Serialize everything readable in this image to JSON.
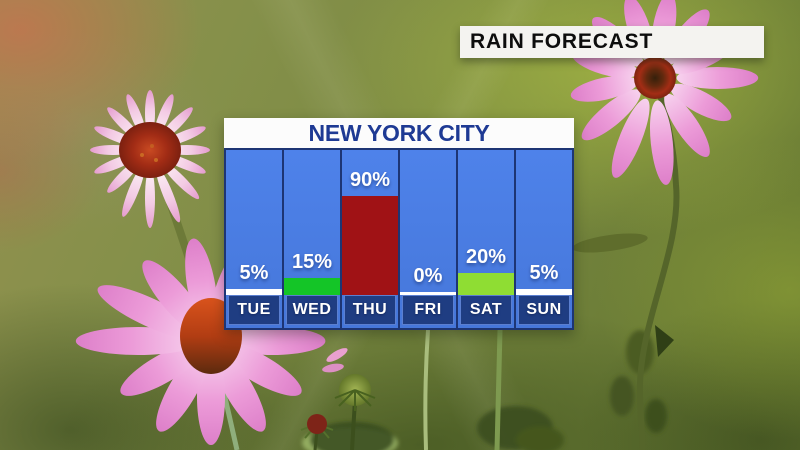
{
  "header": {
    "badge_label": "RAIN FORECAST"
  },
  "panel": {
    "title": "NEW YORK CITY"
  },
  "chart_data": {
    "type": "bar",
    "title": "NEW YORK CITY",
    "categories": [
      "TUE",
      "WED",
      "THU",
      "FRI",
      "SAT",
      "SUN"
    ],
    "values": [
      5,
      15,
      90,
      0,
      20,
      5
    ],
    "labels": [
      "5%",
      "15%",
      "90%",
      "0%",
      "20%",
      "5%"
    ],
    "unit": "%",
    "ylim": [
      0,
      100
    ],
    "bar_colors": [
      "#ffffff",
      "#14c527",
      "#a01215",
      "#ffffff",
      "#8fdd33",
      "#ffffff"
    ],
    "value_label_color": "#ffffff",
    "legend_position": "none",
    "grid": false
  },
  "colors": {
    "panel_blue": "#4a7ce2",
    "panel_border_navy": "#1d3574",
    "day_box_navy": "#1f3d82",
    "panel_title_navy": "#1e3a94",
    "badge_bg": "#f4f3f0",
    "badge_text": "#0d0d0d",
    "background_green": "#76813e",
    "flower_pink": "#ec9bd8",
    "flower_cone_red": "#a32d15"
  }
}
